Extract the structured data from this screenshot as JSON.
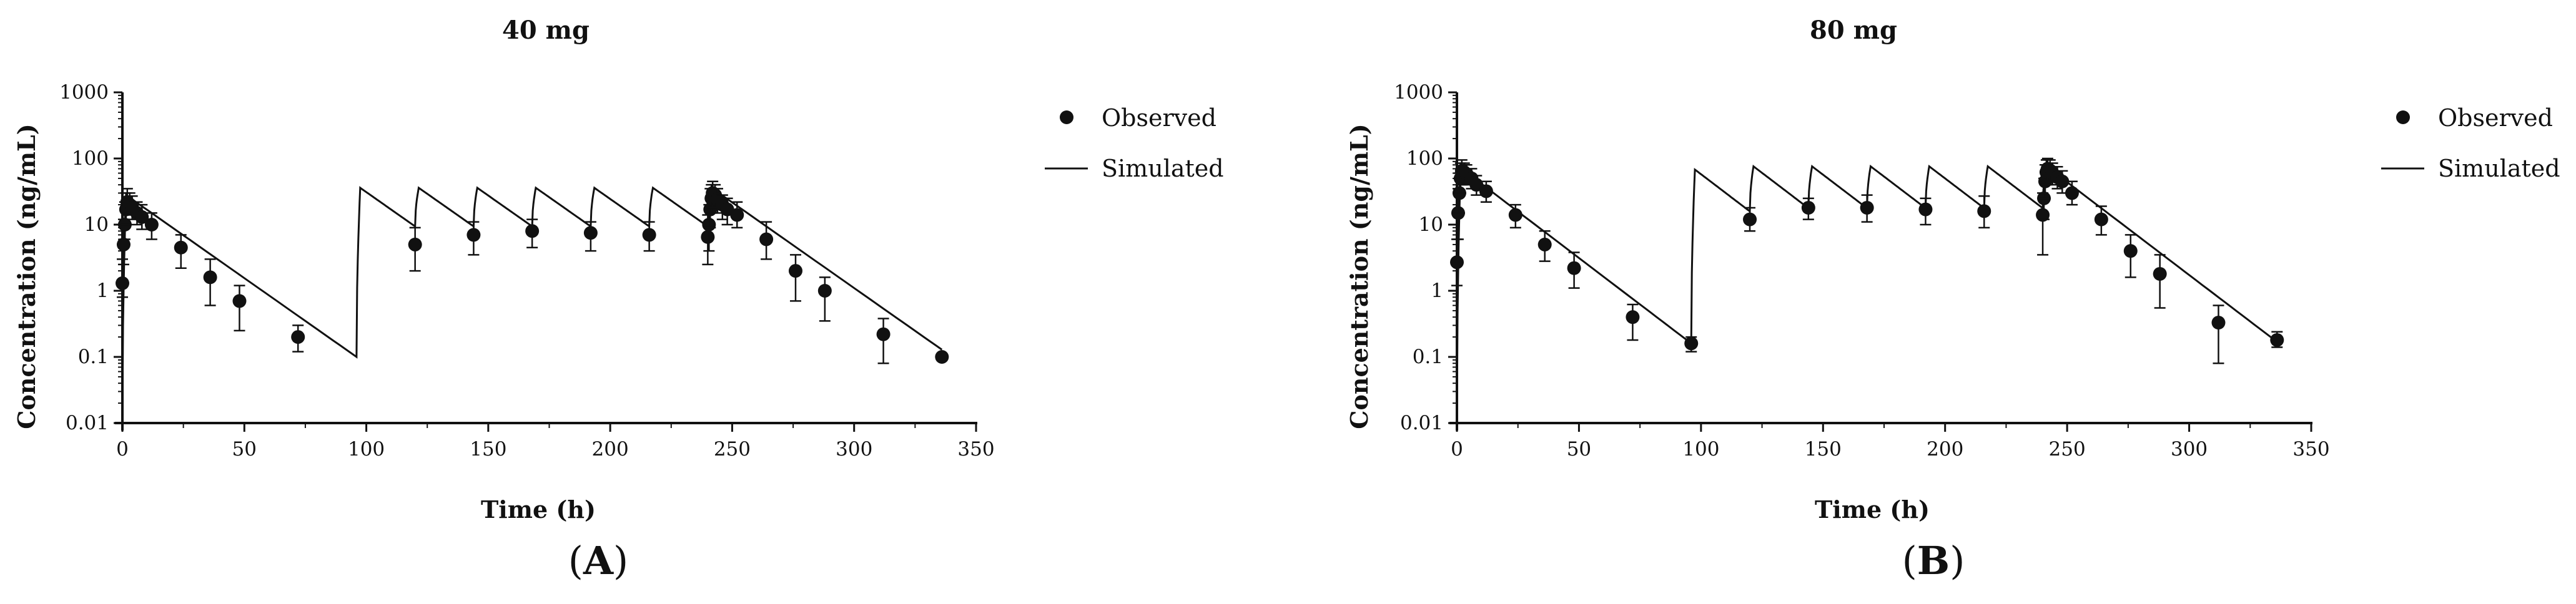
{
  "colors": {
    "ink": "#111111",
    "background": "#ffffff"
  },
  "chart_data": [
    {
      "panel": "A",
      "panel_label_parts": [
        "(",
        "A",
        ")"
      ],
      "type": "line",
      "title": "40 mg",
      "xlabel": "Time (h)",
      "ylabel": "Concentration (ng/mL)",
      "xlim": [
        0,
        350
      ],
      "ylim": [
        0.01,
        1000
      ],
      "yscale": "log",
      "xticks": [
        0,
        50,
        100,
        150,
        200,
        250,
        300,
        350
      ],
      "yticks": [
        0.01,
        0.1,
        1,
        10,
        100,
        1000
      ],
      "ytick_labels": [
        "0.01",
        "0.1",
        "1",
        "10",
        "100",
        "1000"
      ],
      "legend": [
        "Observed",
        "Simulated"
      ],
      "legend_position": "top-right",
      "simulated": {
        "doses": [
          0,
          96,
          120,
          144,
          168,
          192,
          216,
          240
        ],
        "cmax": [
          28,
          36,
          36,
          36,
          36,
          36,
          36,
          36
        ],
        "tmax": 1.5,
        "end_time": 336,
        "end_value": 0.1
      },
      "observed": [
        {
          "x": 0,
          "y": 1.3,
          "lo": 0.8,
          "hi": 3
        },
        {
          "x": 0.5,
          "y": 5,
          "lo": 2.5,
          "hi": 12
        },
        {
          "x": 1,
          "y": 10,
          "lo": 6,
          "hi": 22
        },
        {
          "x": 1.5,
          "y": 17,
          "lo": 10,
          "hi": 30
        },
        {
          "x": 2,
          "y": 22,
          "lo": 15,
          "hi": 35
        },
        {
          "x": 3,
          "y": 20,
          "lo": 14,
          "hi": 30
        },
        {
          "x": 4,
          "y": 18,
          "lo": 12,
          "hi": 27
        },
        {
          "x": 6,
          "y": 15,
          "lo": 10,
          "hi": 22
        },
        {
          "x": 8,
          "y": 13,
          "lo": 8.5,
          "hi": 20
        },
        {
          "x": 12,
          "y": 10,
          "lo": 6,
          "hi": 15
        },
        {
          "x": 24,
          "y": 4.5,
          "lo": 2.2,
          "hi": 7
        },
        {
          "x": 36,
          "y": 1.6,
          "lo": 0.6,
          "hi": 3
        },
        {
          "x": 48,
          "y": 0.7,
          "lo": 0.25,
          "hi": 1.2
        },
        {
          "x": 72,
          "y": 0.2,
          "lo": 0.12,
          "hi": 0.3
        },
        {
          "x": 120,
          "y": 5,
          "lo": 2,
          "hi": 9
        },
        {
          "x": 144,
          "y": 7,
          "lo": 3.5,
          "hi": 11
        },
        {
          "x": 168,
          "y": 8,
          "lo": 4.5,
          "hi": 12
        },
        {
          "x": 192,
          "y": 7.5,
          "lo": 4,
          "hi": 11
        },
        {
          "x": 216,
          "y": 7,
          "lo": 4,
          "hi": 11
        },
        {
          "x": 240,
          "y": 6.5,
          "lo": 2.5,
          "hi": 14
        },
        {
          "x": 240.5,
          "y": 10,
          "lo": 4,
          "hi": 20
        },
        {
          "x": 241,
          "y": 17,
          "lo": 9,
          "hi": 35
        },
        {
          "x": 241.5,
          "y": 25,
          "lo": 15,
          "hi": 40
        },
        {
          "x": 242,
          "y": 30,
          "lo": 18,
          "hi": 45
        },
        {
          "x": 243,
          "y": 28,
          "lo": 18,
          "hi": 40
        },
        {
          "x": 244,
          "y": 24,
          "lo": 15,
          "hi": 35
        },
        {
          "x": 246,
          "y": 20,
          "lo": 12,
          "hi": 28
        },
        {
          "x": 248,
          "y": 17,
          "lo": 10,
          "hi": 25
        },
        {
          "x": 252,
          "y": 14,
          "lo": 9,
          "hi": 22
        },
        {
          "x": 264,
          "y": 6,
          "lo": 3,
          "hi": 11
        },
        {
          "x": 276,
          "y": 2,
          "lo": 0.7,
          "hi": 3.5
        },
        {
          "x": 288,
          "y": 1,
          "lo": 0.35,
          "hi": 1.6
        },
        {
          "x": 312,
          "y": 0.22,
          "lo": 0.08,
          "hi": 0.38
        },
        {
          "x": 336,
          "y": 0.1,
          "lo": 0.1,
          "hi": 0.1
        }
      ]
    },
    {
      "panel": "B",
      "panel_label_parts": [
        "(",
        "B",
        ")"
      ],
      "type": "line",
      "title": "80 mg",
      "xlabel": "Time (h)",
      "ylabel": "Concentration (ng/mL)",
      "xlim": [
        0,
        350
      ],
      "ylim": [
        0.01,
        1000
      ],
      "yscale": "log",
      "xticks": [
        0,
        50,
        100,
        150,
        200,
        250,
        300,
        350
      ],
      "yticks": [
        0.01,
        0.1,
        1,
        10,
        100,
        1000
      ],
      "ytick_labels": [
        "0.01",
        "0.1",
        "1",
        "10",
        "100",
        "1000"
      ],
      "legend": [
        "Observed",
        "Simulated"
      ],
      "legend_position": "top-right",
      "simulated": {
        "doses": [
          0,
          96,
          120,
          144,
          168,
          192,
          216,
          240
        ],
        "cmax": [
          72,
          68,
          76,
          76,
          76,
          76,
          76,
          76
        ],
        "tmax": 1.5,
        "end_time": 336,
        "end_value": 0.16
      },
      "observed": [
        {
          "x": 0,
          "y": 2.7,
          "lo": 1.2,
          "hi": 6
        },
        {
          "x": 0.5,
          "y": 15,
          "lo": 6,
          "hi": 35
        },
        {
          "x": 1,
          "y": 30,
          "lo": 15,
          "hi": 60
        },
        {
          "x": 1.5,
          "y": 50,
          "lo": 30,
          "hi": 85
        },
        {
          "x": 2,
          "y": 65,
          "lo": 40,
          "hi": 95
        },
        {
          "x": 3,
          "y": 62,
          "lo": 42,
          "hi": 85
        },
        {
          "x": 4,
          "y": 58,
          "lo": 40,
          "hi": 80
        },
        {
          "x": 6,
          "y": 50,
          "lo": 35,
          "hi": 70
        },
        {
          "x": 8,
          "y": 40,
          "lo": 28,
          "hi": 55
        },
        {
          "x": 12,
          "y": 32,
          "lo": 22,
          "hi": 45
        },
        {
          "x": 24,
          "y": 14,
          "lo": 9,
          "hi": 20
        },
        {
          "x": 36,
          "y": 5,
          "lo": 2.8,
          "hi": 8
        },
        {
          "x": 48,
          "y": 2.2,
          "lo": 1.1,
          "hi": 3.8
        },
        {
          "x": 72,
          "y": 0.4,
          "lo": 0.18,
          "hi": 0.62
        },
        {
          "x": 96,
          "y": 0.16,
          "lo": 0.12,
          "hi": 0.2
        },
        {
          "x": 120,
          "y": 12,
          "lo": 8,
          "hi": 18
        },
        {
          "x": 144,
          "y": 18,
          "lo": 12,
          "hi": 25
        },
        {
          "x": 168,
          "y": 18,
          "lo": 11,
          "hi": 28
        },
        {
          "x": 192,
          "y": 17,
          "lo": 10,
          "hi": 25
        },
        {
          "x": 216,
          "y": 16,
          "lo": 9,
          "hi": 27
        },
        {
          "x": 240,
          "y": 14,
          "lo": 3.5,
          "hi": 30
        },
        {
          "x": 240.5,
          "y": 25,
          "lo": 12,
          "hi": 50
        },
        {
          "x": 241,
          "y": 45,
          "lo": 25,
          "hi": 80
        },
        {
          "x": 241.5,
          "y": 62,
          "lo": 40,
          "hi": 95
        },
        {
          "x": 242,
          "y": 70,
          "lo": 45,
          "hi": 100
        },
        {
          "x": 243,
          "y": 66,
          "lo": 45,
          "hi": 95
        },
        {
          "x": 244,
          "y": 60,
          "lo": 40,
          "hi": 85
        },
        {
          "x": 246,
          "y": 52,
          "lo": 35,
          "hi": 75
        },
        {
          "x": 248,
          "y": 45,
          "lo": 30,
          "hi": 65
        },
        {
          "x": 252,
          "y": 30,
          "lo": 20,
          "hi": 45
        },
        {
          "x": 264,
          "y": 12,
          "lo": 7,
          "hi": 19
        },
        {
          "x": 276,
          "y": 4,
          "lo": 1.6,
          "hi": 7
        },
        {
          "x": 288,
          "y": 1.8,
          "lo": 0.55,
          "hi": 3.5
        },
        {
          "x": 312,
          "y": 0.33,
          "lo": 0.08,
          "hi": 0.6
        },
        {
          "x": 336,
          "y": 0.18,
          "lo": 0.14,
          "hi": 0.24
        }
      ]
    }
  ]
}
